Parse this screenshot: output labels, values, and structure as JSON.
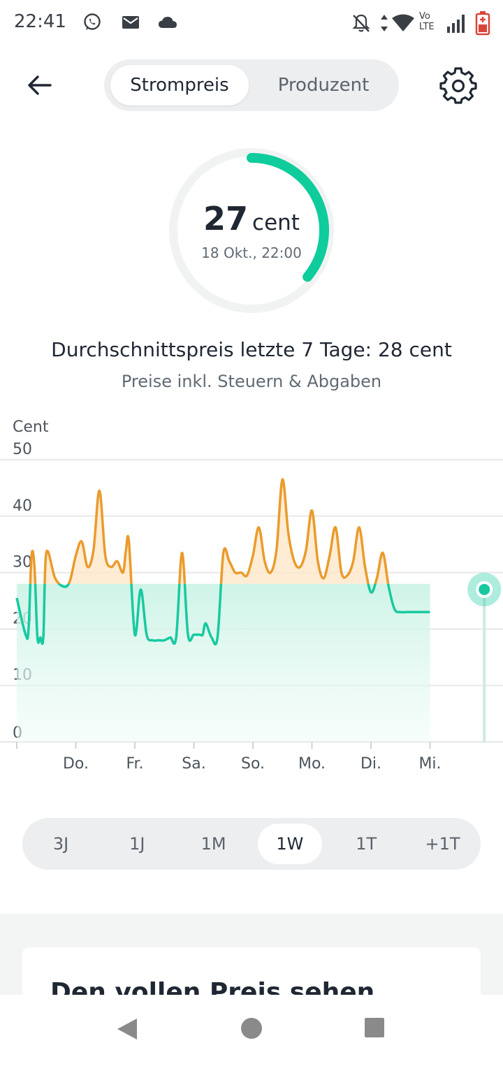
{
  "status_bar": {
    "time": "22:41",
    "left_icons": [
      "whatsapp-icon",
      "mail-icon",
      "cloud-icon"
    ],
    "right_icons": [
      "mute-icon",
      "data-arrows-icon",
      "wifi-icon",
      "volte-icon",
      "signal-icon",
      "battery-icon"
    ],
    "volte_top": "Vo",
    "volte_bottom": "LTE"
  },
  "header": {
    "tabs": [
      {
        "label": "Strompreis",
        "active": true
      },
      {
        "label": "Produzent",
        "active": false
      }
    ]
  },
  "gauge": {
    "value": "27",
    "unit": "cent",
    "date": "18 Okt., 22:00",
    "fill_fraction": 0.36,
    "color": "#0fcc9c"
  },
  "summary": {
    "average": "Durchschnittspreis letzte 7 Tage: 28 cent",
    "note": "Preise inkl. Steuern & Abgaben"
  },
  "chart_data": {
    "type": "line",
    "ylabel": "Cent",
    "ylim": [
      0,
      50
    ],
    "yticks": [
      "50",
      "40",
      "30",
      "20",
      "10",
      "0"
    ],
    "categories": [
      "Do.",
      "Fr.",
      "Sa.",
      "So.",
      "Mo.",
      "Di.",
      "Mi."
    ],
    "threshold": 28,
    "colors": {
      "above": "#ea9b2c",
      "below": "#18c9a0"
    },
    "x": [
      0,
      0.15,
      0.2,
      0.25,
      0.3,
      0.35,
      0.4,
      0.45,
      0.5,
      0.65,
      0.8,
      0.9,
      1.0,
      1.1,
      1.2,
      1.3,
      1.4,
      1.5,
      1.6,
      1.7,
      1.8,
      1.85,
      1.9,
      2.0,
      2.1,
      2.2,
      2.3,
      2.4,
      2.5,
      2.6,
      2.7,
      2.8,
      2.9,
      3.0,
      3.1,
      3.15,
      3.2,
      3.3,
      3.4,
      3.5,
      3.6,
      3.7,
      3.8,
      3.9,
      4.0,
      4.1,
      4.2,
      4.3,
      4.4,
      4.5,
      4.6,
      4.7,
      4.8,
      4.9,
      5.0,
      5.1,
      5.2,
      5.3,
      5.4,
      5.5,
      5.6,
      5.7,
      5.8,
      5.9,
      6.0,
      6.1,
      6.2,
      6.3,
      6.4,
      6.5,
      6.6,
      6.7,
      6.8,
      6.9,
      7.0
    ],
    "values": [
      25.5,
      19,
      20,
      33,
      31,
      18.5,
      18.5,
      18.5,
      33.5,
      29,
      27.5,
      28.5,
      33,
      35.5,
      31,
      34,
      44.5,
      33,
      31,
      32,
      30,
      34,
      35.5,
      19,
      27,
      19,
      18,
      18,
      18,
      18.5,
      18.5,
      33.5,
      19,
      19,
      19,
      19,
      21,
      18.5,
      18.5,
      33.5,
      32,
      30,
      30,
      29.5,
      33,
      38,
      32,
      30,
      34,
      46.5,
      37,
      32,
      31,
      34,
      41,
      32,
      29,
      33,
      38,
      30,
      29.5,
      32,
      38,
      31,
      26.5,
      29,
      33.5,
      27.5,
      23.5,
      23,
      23,
      23,
      23,
      23,
      23
    ],
    "current_x": 7.92,
    "current_value": 27
  },
  "range_selector": {
    "options": [
      {
        "label": "3J",
        "active": false
      },
      {
        "label": "1J",
        "active": false
      },
      {
        "label": "1M",
        "active": false
      },
      {
        "label": "1W",
        "active": true
      },
      {
        "label": "1T",
        "active": false
      },
      {
        "label": "+1T",
        "active": false
      }
    ]
  },
  "card": {
    "title": "Den vollen Preis sehen"
  },
  "navigation_bar": {
    "buttons": [
      "back-triangle-icon",
      "home-circle-icon",
      "recents-square-icon"
    ]
  }
}
